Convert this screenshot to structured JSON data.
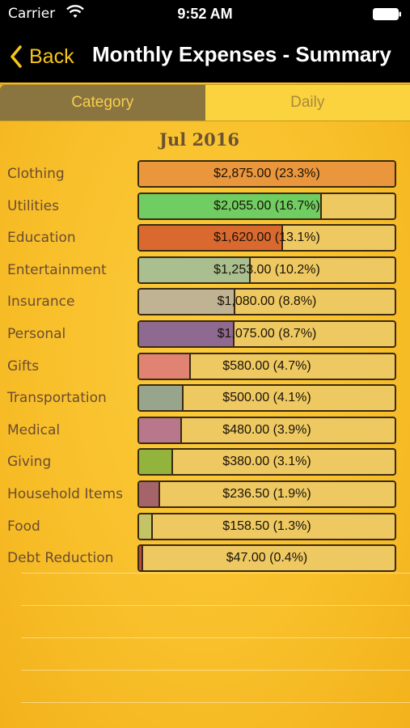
{
  "status_bar": {
    "carrier": "Carrier",
    "time": "9:52 AM"
  },
  "nav": {
    "back_label": "Back",
    "title": "Monthly Expenses - Summary"
  },
  "segments": [
    {
      "label": "Category",
      "active": true
    },
    {
      "label": "Daily",
      "active": false
    }
  ],
  "month": "Jul 2016",
  "categories": [
    {
      "name": "Clothing",
      "amount": "$2,875.00 (23.3%)",
      "share": 1.0,
      "color": "#e9963c"
    },
    {
      "name": "Utilities",
      "amount": "$2,055.00 (16.7%)",
      "share": 0.715,
      "color": "#6fcd62"
    },
    {
      "name": "Education",
      "amount": "$1,620.00 (13.1%)",
      "share": 0.563,
      "color": "#d9692f"
    },
    {
      "name": "Entertainment",
      "amount": "$1,253.00 (10.2%)",
      "share": 0.436,
      "color": "#a9bf8f"
    },
    {
      "name": "Insurance",
      "amount": "$1,080.00 (8.8%)",
      "share": 0.376,
      "color": "#c0b393"
    },
    {
      "name": "Personal",
      "amount": "$1,075.00 (8.7%)",
      "share": 0.374,
      "color": "#8e6990"
    },
    {
      "name": "Gifts",
      "amount": "$580.00 (4.7%)",
      "share": 0.202,
      "color": "#e08372"
    },
    {
      "name": "Transportation",
      "amount": "$500.00 (4.1%)",
      "share": 0.174,
      "color": "#97a58d"
    },
    {
      "name": "Medical",
      "amount": "$480.00 (3.9%)",
      "share": 0.167,
      "color": "#b8778a"
    },
    {
      "name": "Giving",
      "amount": "$380.00 (3.1%)",
      "share": 0.132,
      "color": "#92b33c"
    },
    {
      "name": "Household Items",
      "amount": "$236.50 (1.9%)",
      "share": 0.082,
      "color": "#a5636a"
    },
    {
      "name": "Food",
      "amount": "$158.50 (1.3%)",
      "share": 0.055,
      "color": "#c4c466"
    },
    {
      "name": "Debt Reduction",
      "amount": "$47.00 (0.4%)",
      "share": 0.016,
      "color": "#b84a3e"
    }
  ],
  "colors": {
    "accent": "#f7c51a",
    "active_segment": "#8a7440",
    "background": "#f8c02b"
  }
}
